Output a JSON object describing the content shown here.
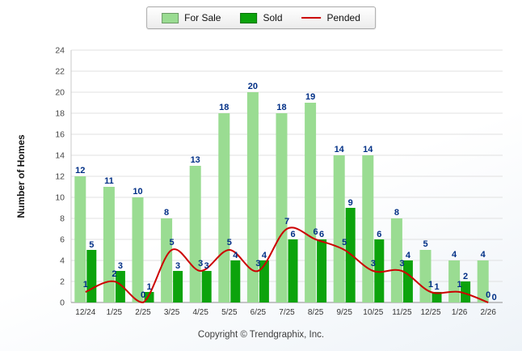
{
  "legend": {
    "items": [
      {
        "label": "For Sale",
        "type": "bar",
        "color": "#9ADC92"
      },
      {
        "label": "Sold",
        "type": "bar",
        "color": "#0CA30C"
      },
      {
        "label": "Pended",
        "type": "line",
        "color": "#CC0000"
      }
    ]
  },
  "footer": {
    "text": "Copyright © Trendgraphix, Inc."
  },
  "chart_data": {
    "type": "bar",
    "subtype": "grouped-bars-with-line",
    "title": "",
    "xlabel": "",
    "ylabel": "Number of Homes",
    "ylim": [
      0,
      24
    ],
    "ytick_step": 2,
    "grid": true,
    "legend_position": "top",
    "label_color": "#002F86",
    "categories": [
      "12/24",
      "1/25",
      "2/25",
      "3/25",
      "4/25",
      "5/25",
      "6/25",
      "7/25",
      "8/25",
      "9/25",
      "10/25",
      "11/25",
      "12/25",
      "1/26",
      "2/26"
    ],
    "series": [
      {
        "name": "For Sale",
        "type": "bar",
        "color": "#9ADC92",
        "values": [
          12,
          11,
          10,
          8,
          13,
          18,
          20,
          18,
          19,
          14,
          14,
          8,
          5,
          4,
          4
        ]
      },
      {
        "name": "Sold",
        "type": "bar",
        "color": "#0CA30C",
        "values": [
          5,
          3,
          1,
          3,
          3,
          4,
          4,
          6,
          6,
          9,
          6,
          4,
          1,
          2,
          0
        ]
      },
      {
        "name": "Pended",
        "type": "line",
        "color": "#CC0000",
        "values": [
          1,
          2,
          0,
          5,
          3,
          5,
          3,
          7,
          6,
          5,
          3,
          3,
          1,
          1,
          0
        ]
      }
    ]
  }
}
